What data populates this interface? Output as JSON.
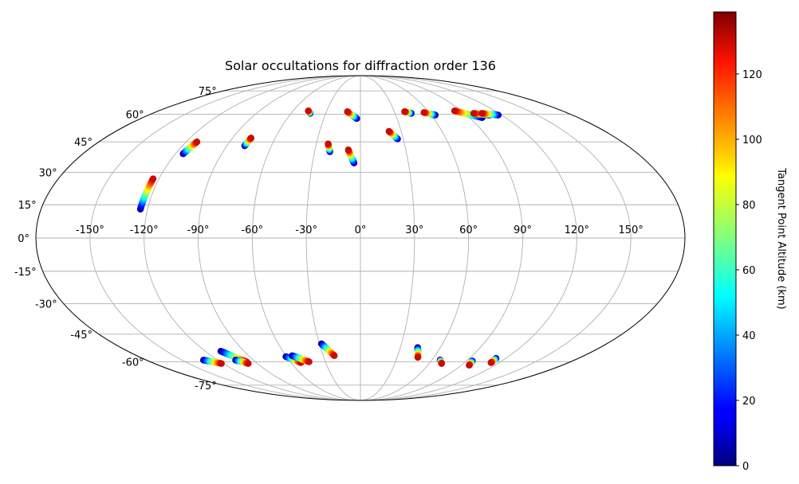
{
  "chart_data": {
    "type": "scatter",
    "projection": "mollweide",
    "title": "Solar occultations for diffraction order 136",
    "longitude_ticks": [
      -150,
      -120,
      -90,
      -60,
      -30,
      0,
      30,
      60,
      90,
      120,
      150
    ],
    "longitude_tick_labels": [
      "-150°",
      "-120°",
      "-90°",
      "-60°",
      "-30°",
      "0°",
      "30°",
      "60°",
      "90°",
      "120°",
      "150°"
    ],
    "latitude_ticks": [
      -75,
      -60,
      -45,
      -30,
      -15,
      0,
      15,
      30,
      45,
      60,
      75
    ],
    "latitude_tick_labels": [
      "-75°",
      "-60°",
      "-45°",
      "-30°",
      "-15°",
      "0°",
      "15°",
      "30°",
      "45°",
      "60°",
      "75°"
    ],
    "grid": true,
    "grid_color": "#b0b0b0",
    "colormap": "jet",
    "colorbar": {
      "label": "Tangent Point Altitude (km)",
      "range": [
        0,
        139
      ],
      "ticks": [
        0,
        20,
        40,
        60,
        80,
        100,
        120
      ],
      "tick_labels": [
        "0",
        "20",
        "40",
        "60",
        "80",
        "100",
        "120"
      ],
      "placement": "right"
    },
    "series": [
      {
        "values": [
          {
            "lon": -124,
            "lat": 13,
            "alt": 0
          },
          {
            "lon": -123.5,
            "lat": 27,
            "alt": 130
          }
        ]
      },
      {
        "values": [
          {
            "lon": -115,
            "lat": 39,
            "alt": 0
          },
          {
            "lon": -112.5,
            "lat": 45,
            "alt": 130
          }
        ]
      },
      {
        "values": [
          {
            "lon": -78,
            "lat": 43,
            "alt": 0
          },
          {
            "lon": -77,
            "lat": 47,
            "alt": 130
          }
        ]
      },
      {
        "values": [
          {
            "lon": -43.5,
            "lat": 60.5,
            "alt": 0
          },
          {
            "lon": -46.5,
            "lat": 62,
            "alt": 130
          }
        ]
      },
      {
        "values": [
          {
            "lon": -20,
            "lat": 40,
            "alt": 0
          },
          {
            "lon": -22,
            "lat": 44,
            "alt": 130
          }
        ]
      },
      {
        "values": [
          {
            "lon": -3,
            "lat": 57.5,
            "alt": 0
          },
          {
            "lon": -11.5,
            "lat": 61.5,
            "alt": 130
          }
        ]
      },
      {
        "values": [
          {
            "lon": -4,
            "lat": 34.5,
            "alt": 0
          },
          {
            "lon": -8,
            "lat": 41,
            "alt": 130
          }
        ]
      },
      {
        "values": [
          {
            "lon": 26,
            "lat": 46.5,
            "alt": 0
          },
          {
            "lon": 21,
            "lat": 50.5,
            "alt": 130
          }
        ]
      },
      {
        "values": [
          {
            "lon": 44,
            "lat": 60.5,
            "alt": 0
          },
          {
            "lon": 39,
            "lat": 61.5,
            "alt": 130
          }
        ]
      },
      {
        "values": [
          {
            "lon": 63.5,
            "lat": 59.5,
            "alt": 0
          },
          {
            "lon": 55.5,
            "lat": 61,
            "alt": 130
          }
        ]
      },
      {
        "values": [
          {
            "lon": 100.5,
            "lat": 58,
            "alt": 0
          },
          {
            "lon": 84,
            "lat": 62,
            "alt": 130
          }
        ]
      },
      {
        "values": [
          {
            "lon": 110,
            "lat": 59.5,
            "alt": 0
          },
          {
            "lon": 98,
            "lat": 60.5,
            "alt": 130
          }
        ]
      },
      {
        "values": [
          {
            "lon": 117,
            "lat": 59.5,
            "alt": 0
          },
          {
            "lon": 105,
            "lat": 60.5,
            "alt": 130
          }
        ]
      },
      {
        "values": [
          {
            "lon": -132,
            "lat": -59,
            "alt": 0
          },
          {
            "lon": -121.5,
            "lat": -61,
            "alt": 130
          }
        ]
      },
      {
        "values": [
          {
            "lon": -108,
            "lat": -54,
            "alt": 0
          },
          {
            "lon": -97.5,
            "lat": -60,
            "alt": 130
          }
        ]
      },
      {
        "values": [
          {
            "lon": -105,
            "lat": -59,
            "alt": 0
          },
          {
            "lon": -98,
            "lat": -61,
            "alt": 130
          }
        ]
      },
      {
        "values": [
          {
            "lon": -60.5,
            "lat": -57,
            "alt": 0
          },
          {
            "lon": -51.5,
            "lat": -60.5,
            "alt": 130
          }
        ]
      },
      {
        "values": [
          {
            "lon": -55,
            "lat": -56.5,
            "alt": 0
          },
          {
            "lon": -44,
            "lat": -60,
            "alt": 130
          }
        ]
      },
      {
        "values": [
          {
            "lon": -28.5,
            "lat": -50,
            "alt": 0
          },
          {
            "lon": -21,
            "lat": -56.5,
            "alt": 130
          }
        ]
      },
      {
        "values": [
          {
            "lon": 43,
            "lat": -52,
            "alt": 0
          },
          {
            "lon": 47,
            "lat": -57.5,
            "alt": 130
          }
        ]
      },
      {
        "values": [
          {
            "lon": 67,
            "lat": -59,
            "alt": 0
          },
          {
            "lon": 71,
            "lat": -61,
            "alt": 130
          }
        ]
      },
      {
        "values": [
          {
            "lon": 95,
            "lat": -59.5,
            "alt": 0
          },
          {
            "lon": 97,
            "lat": -62,
            "alt": 130
          }
        ]
      },
      {
        "values": [
          {
            "lon": 112,
            "lat": -58,
            "alt": 0
          },
          {
            "lon": 113,
            "lat": -60.5,
            "alt": 130
          }
        ]
      }
    ]
  }
}
